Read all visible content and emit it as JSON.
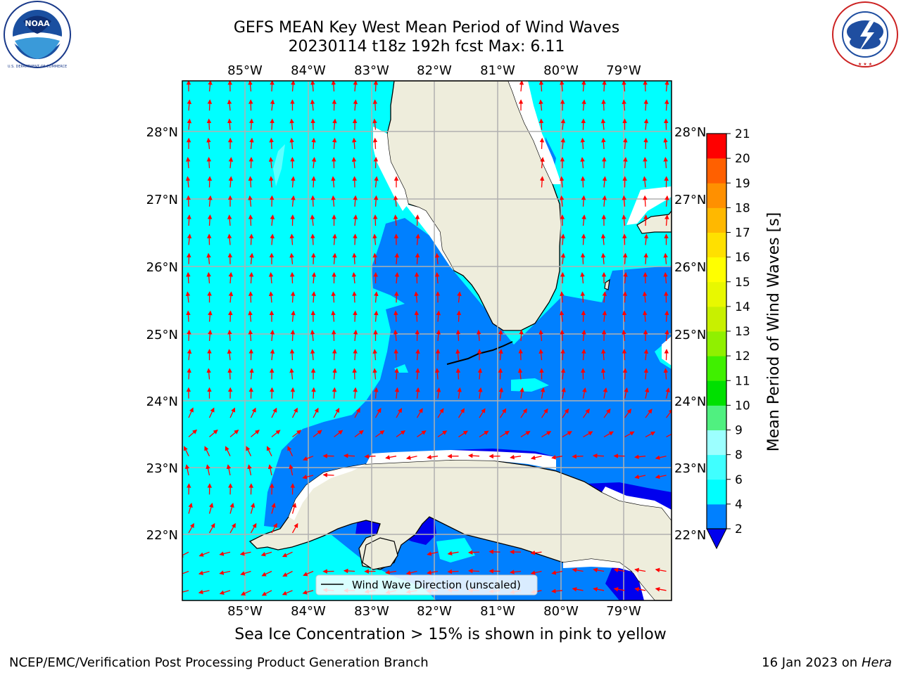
{
  "header": {
    "title_line1": "GEFS MEAN Key West Mean Period of Wind Waves",
    "title_line2": "20230114 t18z 192h fcst   Max: 6.11"
  },
  "logos": {
    "noaa": {
      "center_text": "NOAA",
      "ring_text": "NATIONAL OCEANIC AND ATMOSPHERIC ADMINISTRATION",
      "bottom_text": "U.S. DEPARTMENT OF COMMERCE"
    },
    "nws": {
      "ring_text": "NATIONAL WEATHER SERVICE"
    }
  },
  "map": {
    "lon_ticks": [
      "85°W",
      "84°W",
      "83°W",
      "82°W",
      "81°W",
      "80°W",
      "79°W"
    ],
    "lat_ticks": [
      "28°N",
      "27°N",
      "26°N",
      "25°N",
      "24°N",
      "23°N",
      "22°N"
    ],
    "legend_label": "Wind Wave Direction (unscaled)",
    "colors": {
      "land": "#eeeddc",
      "level_2_4": "#0080ff",
      "level_4_6": "#00ffff",
      "below_2": "#0000ee",
      "arrow": "#ff0000",
      "grid": "#b0b0b0"
    }
  },
  "colorbar": {
    "label": "Mean Period of Wind Waves [s]",
    "ticks": [
      "2",
      "4",
      "6",
      "8",
      "9",
      "10",
      "11",
      "12",
      "13",
      "14",
      "15",
      "16",
      "17",
      "18",
      "19",
      "20",
      "21"
    ],
    "colors": [
      "#0080ff",
      "#00ffff",
      "#40ffff",
      "#9cffff",
      "#50f080",
      "#00e000",
      "#40f000",
      "#90f000",
      "#c8f000",
      "#e8f800",
      "#ffff00",
      "#ffe000",
      "#ffb800",
      "#ff9000",
      "#ff6000",
      "#ff3000",
      "#ff0000"
    ],
    "extend_color": "#0000ee"
  },
  "subtitle": "Sea Ice Concentration > 15% is shown in pink to yellow",
  "footer": {
    "left": "NCEP/EMC/Verification Post Processing Product Generation Branch",
    "date": "16 Jan 2023 on ",
    "host": "Hera"
  }
}
